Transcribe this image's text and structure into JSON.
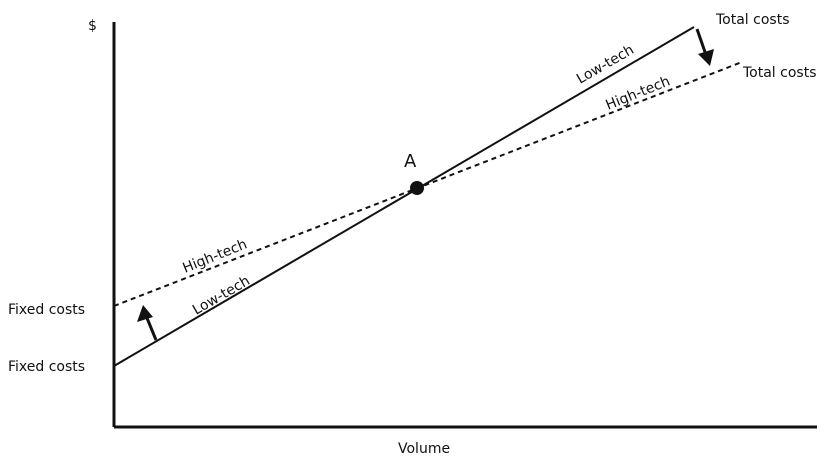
{
  "axes": {
    "y_label": "$",
    "x_label": "Volume"
  },
  "left_labels": {
    "fixed_costs_high": "Fixed costs",
    "fixed_costs_low": "Fixed costs"
  },
  "right_labels": {
    "total_costs_low": "Total costs",
    "total_costs_high": "Total costs"
  },
  "line_labels": {
    "low_tech_left": "Low-tech",
    "high_tech_left": "High-tech",
    "low_tech_right": "Low-tech",
    "high_tech_right": "High-tech"
  },
  "point": {
    "label": "A"
  },
  "colors": {
    "ink": "#111111",
    "background": "#ffffff"
  }
}
